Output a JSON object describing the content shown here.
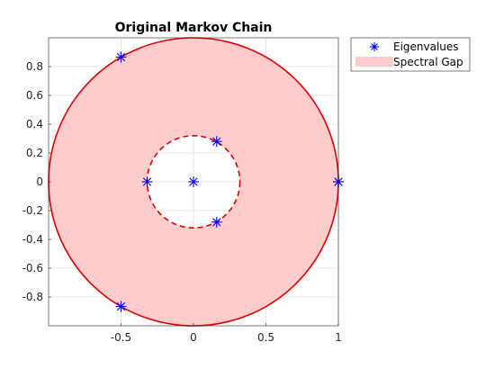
{
  "chart_data": {
    "type": "scatter",
    "title": "Original Markov Chain",
    "xlabel": "",
    "ylabel": "",
    "xlim": [
      -1,
      1
    ],
    "ylim": [
      -1,
      1
    ],
    "grid": true,
    "legend_position": "outside-top-right",
    "xticks": [
      -0.5,
      0,
      0.5,
      1
    ],
    "xtick_labels": [
      "-0.5",
      "0",
      "0.5",
      "1"
    ],
    "yticks": [
      -0.8,
      -0.6,
      -0.4,
      -0.2,
      0,
      0.2,
      0.4,
      0.6,
      0.8
    ],
    "ytick_labels": [
      "-0.8",
      "-0.6",
      "-0.4",
      "-0.2",
      "0",
      "0.2",
      "0.4",
      "0.6",
      "0.8"
    ],
    "series": [
      {
        "name": "Eigenvalues",
        "marker": "asterisk",
        "color": "#0000ff",
        "points": [
          {
            "x": 1,
            "y": 0
          },
          {
            "x": 1,
            "y": 0
          },
          {
            "x": -0.5,
            "y": 0.866
          },
          {
            "x": -0.5,
            "y": -0.866
          },
          {
            "x": 0.16,
            "y": 0.28
          },
          {
            "x": 0.16,
            "y": -0.28
          },
          {
            "x": -0.32,
            "y": 0
          },
          {
            "x": 0,
            "y": 0
          }
        ]
      },
      {
        "name": "Spectral Gap",
        "kind": "annulus",
        "outer_radius": 1,
        "inner_radius": 0.32,
        "fill_color": "#ffcccc",
        "edge_color": "#e00000"
      }
    ]
  }
}
